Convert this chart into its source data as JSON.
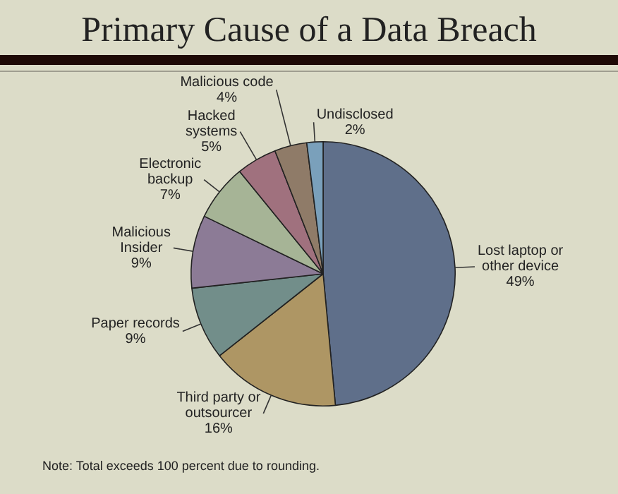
{
  "chart_data": {
    "type": "pie",
    "title": "Primary Cause of a Data Breach",
    "categories": [
      "Lost laptop or other device",
      "Third party or outsourcer",
      "Paper records",
      "Malicious Insider",
      "Electronic backup",
      "Hacked systems",
      "Malicious code",
      "Undisclosed"
    ],
    "values": [
      49,
      16,
      9,
      9,
      7,
      5,
      4,
      2
    ],
    "colors": [
      "#5f6f8a",
      "#ae9664",
      "#728e8a",
      "#8c7b96",
      "#a6b496",
      "#a0717e",
      "#8f7b68",
      "#7aa0bb"
    ],
    "value_labels": [
      "49%",
      "16%",
      "9%",
      "9%",
      "7%",
      "5%",
      "4%",
      "2%"
    ],
    "annotations": [
      "Note: Total exceeds 100 percent due to rounding."
    ],
    "legend": false
  }
}
